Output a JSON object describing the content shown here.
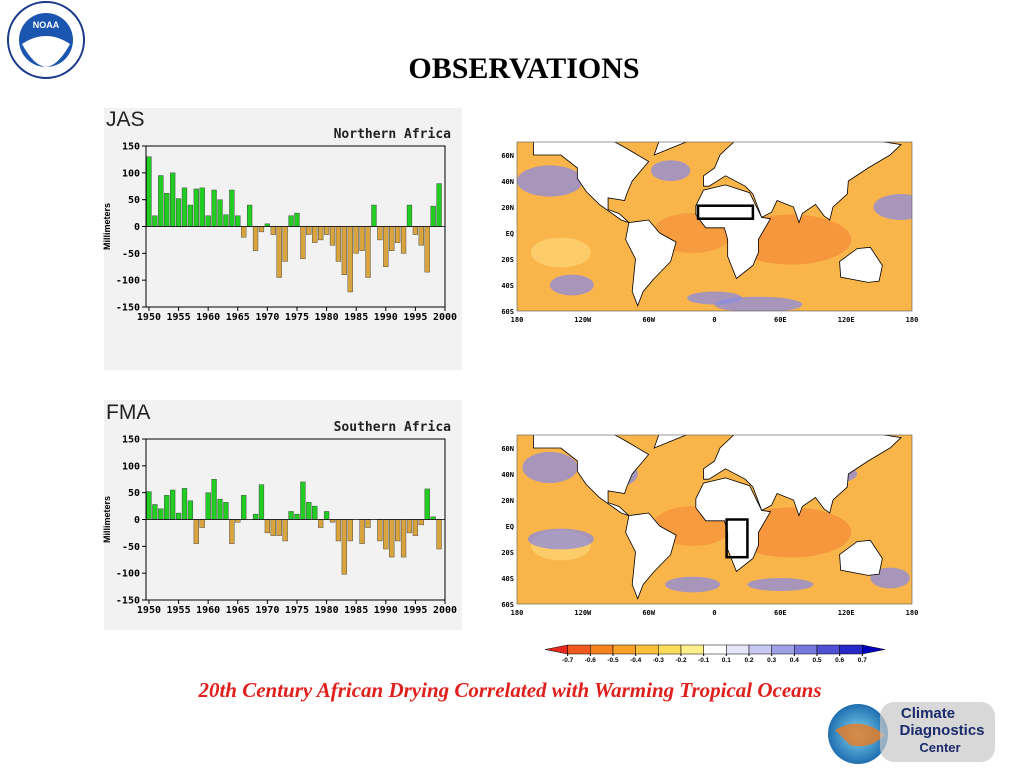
{
  "header": {
    "title": "OBSERVATIONS"
  },
  "chart_data": [
    {
      "type": "bar",
      "season": "JAS",
      "title": "Northern Africa",
      "ylabel": "Millimeters",
      "x": [
        1950,
        1951,
        1952,
        1953,
        1954,
        1955,
        1956,
        1957,
        1958,
        1959,
        1960,
        1961,
        1962,
        1963,
        1964,
        1965,
        1966,
        1967,
        1968,
        1969,
        1970,
        1971,
        1972,
        1973,
        1974,
        1975,
        1976,
        1977,
        1978,
        1979,
        1980,
        1981,
        1982,
        1983,
        1984,
        1985,
        1986,
        1987,
        1988,
        1989,
        1990,
        1991,
        1992,
        1993,
        1994,
        1995,
        1996,
        1997,
        1998,
        1999
      ],
      "values": [
        130,
        20,
        95,
        62,
        100,
        52,
        72,
        40,
        70,
        72,
        20,
        68,
        50,
        22,
        68,
        20,
        -20,
        40,
        -45,
        -10,
        5,
        -15,
        -95,
        -65,
        20,
        25,
        -60,
        -15,
        -30,
        -25,
        -15,
        -35,
        -65,
        -90,
        -122,
        -50,
        -45,
        -95,
        40,
        -25,
        -75,
        -45,
        -30,
        -50,
        40,
        -15,
        -35,
        -85,
        38,
        80
      ],
      "xlim": [
        1949.5,
        2000
      ],
      "xticks": [
        1950,
        1955,
        1960,
        1965,
        1970,
        1975,
        1980,
        1985,
        1990,
        1995,
        2000
      ],
      "ylim": [
        -150,
        150
      ],
      "yticks": [
        -150,
        -100,
        -50,
        0,
        50,
        100,
        150
      ],
      "positive_color": "#22cc22",
      "negative_color": "#d8a440"
    },
    {
      "type": "bar",
      "season": "FMA",
      "title": "Southern Africa",
      "ylabel": "Millimeters",
      "x": [
        1950,
        1951,
        1952,
        1953,
        1954,
        1955,
        1956,
        1957,
        1958,
        1959,
        1960,
        1961,
        1962,
        1963,
        1964,
        1965,
        1966,
        1967,
        1968,
        1969,
        1970,
        1971,
        1972,
        1973,
        1974,
        1975,
        1976,
        1977,
        1978,
        1979,
        1980,
        1981,
        1982,
        1983,
        1984,
        1985,
        1986,
        1987,
        1988,
        1989,
        1990,
        1991,
        1992,
        1993,
        1994,
        1995,
        1996,
        1997,
        1998,
        1999
      ],
      "values": [
        52,
        28,
        20,
        45,
        55,
        12,
        58,
        35,
        -45,
        -15,
        50,
        75,
        38,
        32,
        -45,
        -5,
        45,
        0,
        10,
        65,
        -25,
        -30,
        -30,
        -40,
        15,
        10,
        70,
        32,
        25,
        -15,
        15,
        -5,
        -40,
        -102,
        -40,
        0,
        -45,
        -15,
        0,
        -40,
        -55,
        -70,
        -40,
        -70,
        -25,
        -30,
        -10,
        57,
        5,
        -55
      ],
      "xlim": [
        1949.5,
        2000
      ],
      "xticks": [
        1950,
        1955,
        1960,
        1965,
        1970,
        1975,
        1980,
        1985,
        1990,
        1995,
        2000
      ],
      "ylim": [
        -150,
        150
      ],
      "yticks": [
        -150,
        -100,
        -50,
        0,
        50,
        100,
        150
      ],
      "positive_color": "#22cc22",
      "negative_color": "#d8a440"
    }
  ],
  "maps": [
    {
      "lat_labels": [
        "60N",
        "40N",
        "20N",
        "EQ",
        "20S",
        "40S",
        "60S"
      ],
      "lon_labels": [
        "180",
        "120W",
        "60W",
        "0",
        "60E",
        "120E",
        "180"
      ]
    },
    {
      "lat_labels": [
        "60N",
        "40N",
        "20N",
        "EQ",
        "20S",
        "40S",
        "60S"
      ],
      "lon_labels": [
        "180",
        "120W",
        "60W",
        "0",
        "60E",
        "120E",
        "180"
      ]
    }
  ],
  "colorbar": {
    "ticks": [
      -0.7,
      -0.6,
      -0.5,
      -0.4,
      -0.3,
      -0.2,
      -0.1,
      0.1,
      0.2,
      0.3,
      0.4,
      0.5,
      0.6,
      0.7
    ],
    "colors": [
      "#e8281e",
      "#f05a1e",
      "#f5821e",
      "#f8a028",
      "#fac03c",
      "#fcdc5a",
      "#fff08c",
      "#ffffff",
      "#e6e6fa",
      "#c8c8f0",
      "#a0a0e6",
      "#7878dc",
      "#5050d2",
      "#2828c8",
      "#0000c0"
    ]
  },
  "caption": "20th Century African Drying Correlated with Warming Tropical Oceans",
  "logos": {
    "noaa": "NOAA",
    "cdc": [
      "Climate",
      "Diagnostics",
      "Center"
    ]
  }
}
